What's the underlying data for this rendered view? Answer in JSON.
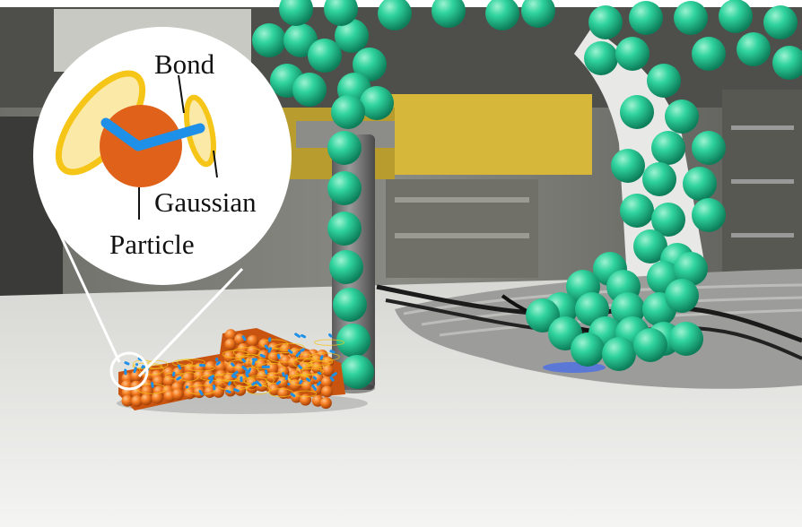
{
  "labels": {
    "bond": "Bond",
    "gaussian": "Gaussian",
    "particle": "Particle"
  },
  "colors": {
    "particle_orange": "#e0621a",
    "gaussian_yellow": "#f5c518",
    "bond_blue": "#1e90e8",
    "robot_sphere_green": "#21c08f",
    "table_white": "#efefed"
  }
}
